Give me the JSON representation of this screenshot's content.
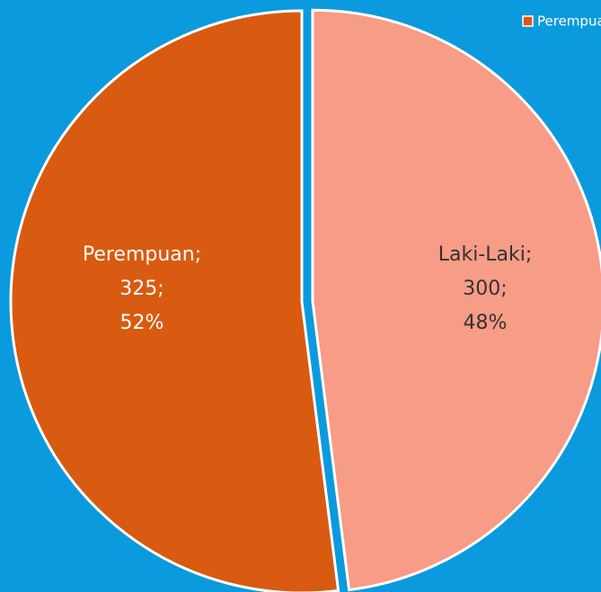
{
  "chart_data": {
    "type": "pie",
    "categories": [
      "Laki-Laki",
      "Perempuan"
    ],
    "values": [
      300,
      325
    ],
    "data_labels": [
      [
        "Laki-Laki;",
        "300;",
        "48%"
      ],
      [
        "Perempuan;",
        "325;",
        "52%"
      ]
    ],
    "colors": [
      "#f79c86",
      "#d95a11"
    ],
    "legend": "top-right"
  }
}
